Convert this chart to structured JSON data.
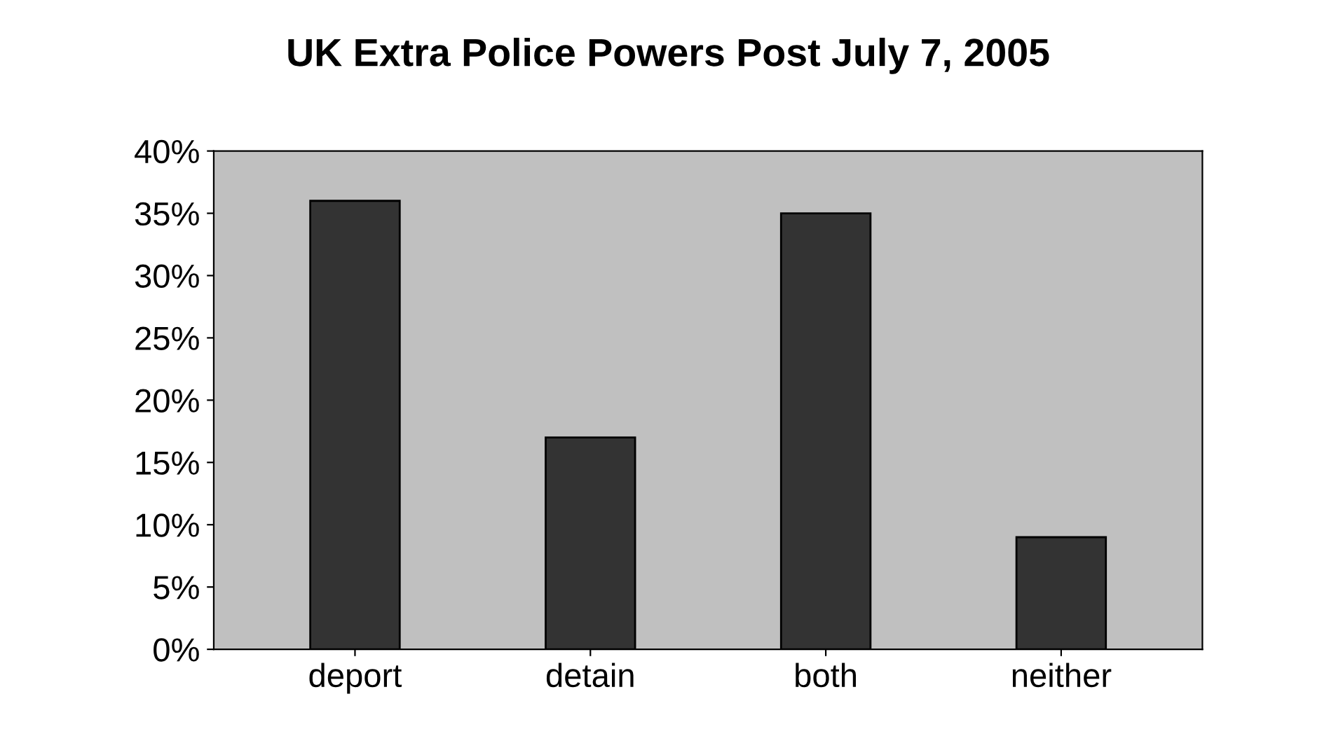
{
  "chart_data": {
    "type": "bar",
    "title": "UK Extra Police Powers Post July 7, 2005",
    "categories": [
      "deport",
      "detain",
      "both",
      "neither"
    ],
    "values": [
      36,
      17,
      35,
      9
    ],
    "color": "#333333",
    "ylim": [
      0,
      40
    ],
    "yticks": [
      {
        "value": 0,
        "label": "0%"
      },
      {
        "value": 5,
        "label": "5%"
      },
      {
        "value": 10,
        "label": "10%"
      },
      {
        "value": 15,
        "label": "15%"
      },
      {
        "value": 20,
        "label": "20%"
      },
      {
        "value": 25,
        "label": "25%"
      },
      {
        "value": 30,
        "label": "30%"
      },
      {
        "value": 35,
        "label": "35%"
      },
      {
        "value": 40,
        "label": "40%"
      }
    ],
    "grid": false,
    "legend": false
  }
}
